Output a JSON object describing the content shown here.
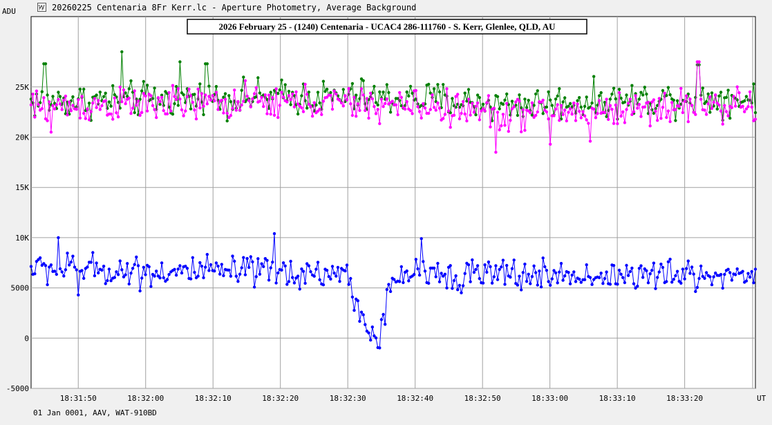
{
  "window": {
    "title": "20260225 Centenaria 8Fr Kerr.lc - Aperture Photometry, Average Background",
    "icon": "light-curve-app-icon"
  },
  "footer": {
    "text": "01 Jan 0001, AAV, WAT-910BD"
  },
  "chart_data": {
    "type": "line",
    "title": "2026 February 25 - (1240) Centenaria - UCAC4 286-111760 - S. Kerr, Glenlee, QLD, AU",
    "ylabel": "ADU",
    "xlabel": "UT",
    "x_start": "18:31:43",
    "x_end": "18:33:30",
    "xlim_seconds": [
      0,
      107.5
    ],
    "ylim": [
      -5000,
      32000
    ],
    "grid": true,
    "x_ticks": [
      "18:31:50",
      "18:32:00",
      "18:32:10",
      "18:32:20",
      "18:32:30",
      "18:32:40",
      "18:32:50",
      "18:33:00",
      "18:33:10",
      "18:33:20"
    ],
    "x_tick_seconds": [
      7,
      17,
      27,
      37,
      47,
      57,
      67,
      77,
      87,
      97
    ],
    "y_ticks": [
      -5000,
      0,
      5000,
      10000,
      15000,
      20000,
      25000
    ],
    "y_tick_labels": [
      "-5000",
      "0",
      "5000",
      "10K",
      "15K",
      "20K",
      "25K"
    ],
    "n_points": 400,
    "series": [
      {
        "color": "#008000",
        "base_profile": [
          [
            0,
            23500
          ],
          [
            20,
            23800
          ],
          [
            40,
            24000
          ],
          [
            60,
            23800
          ],
          [
            70,
            23200
          ],
          [
            80,
            23500
          ],
          [
            100,
            24000
          ],
          [
            107.5,
            23800
          ]
        ],
        "noise": 1200,
        "spikes": [
          [
            2,
            27300
          ],
          [
            13.5,
            28500
          ],
          [
            22,
            27500
          ],
          [
            26,
            27300
          ],
          [
            49,
            25800
          ],
          [
            99,
            27200
          ]
        ]
      },
      {
        "color": "#ff00ff",
        "base_profile": [
          [
            0,
            23000
          ],
          [
            20,
            23300
          ],
          [
            40,
            23500
          ],
          [
            60,
            23000
          ],
          [
            70,
            22300
          ],
          [
            80,
            22500
          ],
          [
            100,
            23200
          ],
          [
            107.5,
            23000
          ]
        ],
        "noise": 1200,
        "spikes": [
          [
            3,
            20500
          ],
          [
            69,
            18500
          ],
          [
            77,
            19300
          ],
          [
            83,
            19600
          ],
          [
            99,
            27500
          ]
        ]
      },
      {
        "color": "#0000ff",
        "base_profile": [
          [
            0,
            7000
          ],
          [
            20,
            6600
          ],
          [
            40,
            6500
          ],
          [
            47,
            6400
          ],
          [
            48,
            3500
          ],
          [
            50,
            1500
          ],
          [
            51.5,
            -800
          ],
          [
            53,
            4000
          ],
          [
            55,
            6500
          ],
          [
            80,
            6200
          ],
          [
            107.5,
            6300
          ]
        ],
        "noise": 1100,
        "spikes": [
          [
            4,
            10000
          ],
          [
            7,
            4300
          ],
          [
            36,
            10400
          ],
          [
            58,
            9900
          ]
        ]
      }
    ]
  }
}
